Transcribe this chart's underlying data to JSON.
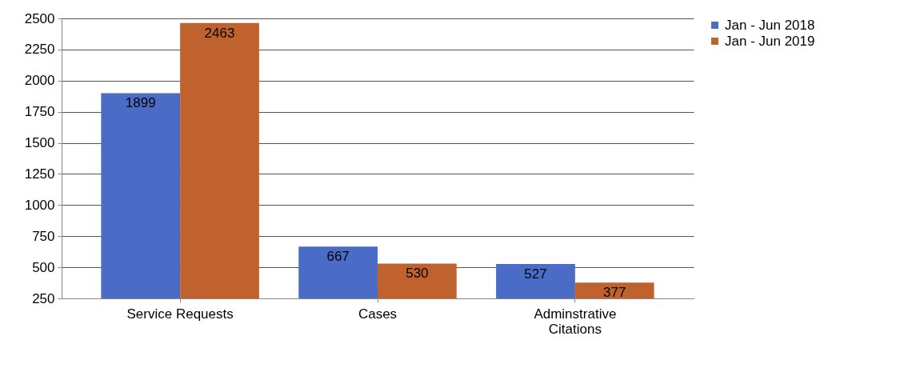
{
  "chart_data": {
    "type": "bar",
    "categories": [
      "Service Requests",
      "Cases",
      "Adminstrative Citations"
    ],
    "series": [
      {
        "name": "Jan - Jun 2018",
        "color": "#4a6cc6",
        "values": [
          1899,
          667,
          527
        ]
      },
      {
        "name": "Jan - Jun 2019",
        "color": "#c0622e",
        "values": [
          2463,
          530,
          377
        ]
      }
    ],
    "ylim": [
      250,
      2500
    ],
    "yticks": [
      250,
      500,
      750,
      1000,
      1250,
      1500,
      1750,
      2000,
      2250,
      2500
    ],
    "grid": "y",
    "legend": "right",
    "data_labels": true
  }
}
